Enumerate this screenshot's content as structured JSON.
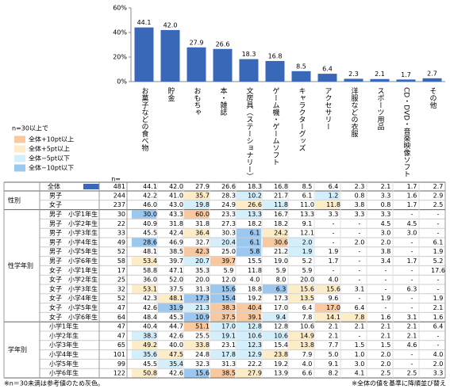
{
  "chart_data": {
    "type": "bar",
    "categories": [
      "お菓子などの食べ物",
      "貯金",
      "おもちゃ",
      "本・雑誌",
      "文房具（ステーショナリー）",
      "ゲーム機・ゲームソフト",
      "キャラクターグッズ",
      "アクセサリー",
      "洋服などの衣服",
      "スポーツ用品",
      "CD・DVD・音楽映像ソフト",
      "その他"
    ],
    "values": [
      44.1,
      42.0,
      27.9,
      26.6,
      18.3,
      16.8,
      8.5,
      6.4,
      2.3,
      2.1,
      1.7,
      2.7
    ],
    "value_labels": [
      "44.1",
      "42.0",
      "27.9",
      "26.6",
      "18.3",
      "16.8",
      "8.5",
      "6.4",
      "2.3",
      "2.1",
      "1.7",
      "2.7"
    ],
    "color": "#3a68b8",
    "ylim": [
      0,
      60
    ],
    "yticks": [
      {
        "value": 0,
        "label": "0%"
      },
      {
        "value": 20,
        "label": "20%"
      },
      {
        "value": 40,
        "label": "40%"
      },
      {
        "value": 60,
        "label": "60%"
      }
    ]
  },
  "legend": {
    "title": "n=30以上で",
    "items": [
      {
        "label": "全体+10pt以上",
        "color": "#f8c9a0"
      },
      {
        "label": "全体+5pt以上",
        "color": "#fdecc8"
      },
      {
        "label": "全体−5pt以下",
        "color": "#d3effb"
      },
      {
        "label": "全体−10pt以下",
        "color": "#9cc7ee"
      }
    ]
  },
  "table": {
    "n_header": "n=",
    "total": {
      "label": "全体",
      "n": "481",
      "cells": [
        "44.1",
        "42.0",
        "27.9",
        "26.6",
        "18.3",
        "16.8",
        "8.5",
        "6.4",
        "2.3",
        "2.1",
        "1.7",
        "2.7"
      ]
    },
    "groups": [
      {
        "label": "性別",
        "rows": [
          {
            "label": "男子",
            "n": "244",
            "cells": [
              "42.2",
              "41.0",
              "35.7",
              "28.3",
              "10.2",
              "21.7",
              "6.1",
              "1.2",
              "0.8",
              "3.3",
              "1.6",
              "2.9"
            ]
          },
          {
            "label": "女子",
            "n": "237",
            "cells": [
              "46.0",
              "43.0",
              "19.8",
              "24.9",
              "26.6",
              "11.8",
              "11.0",
              "11.8",
              "3.8",
              "0.8",
              "1.7",
              "2.5"
            ]
          }
        ]
      },
      {
        "label": "性学年別",
        "rows": [
          {
            "label": "男子　小学1年生",
            "n": "30",
            "cells": [
              "30.0",
              "43.3",
              "60.0",
              "23.3",
              "13.3",
              "16.7",
              "13.3",
              "3.3",
              "3.3",
              "3.3",
              "-",
              "-"
            ]
          },
          {
            "label": "男子　小学2年生",
            "n": "22",
            "cells": [
              "40.9",
              "31.8",
              "31.8",
              "27.3",
              "18.2",
              "18.2",
              "9.1",
              "-",
              "-",
              "4.5",
              "4.5",
              "-"
            ]
          },
          {
            "label": "男子　小学3年生",
            "n": "33",
            "cells": [
              "45.5",
              "42.4",
              "36.4",
              "30.3",
              "6.1",
              "24.2",
              "12.1",
              "-",
              "-",
              "3.0",
              "3.0",
              "-"
            ]
          },
          {
            "label": "男子　小学4年生",
            "n": "49",
            "cells": [
              "28.6",
              "46.9",
              "32.7",
              "20.4",
              "6.1",
              "30.6",
              "2.0",
              "-",
              "2.0",
              "2.0",
              "-",
              "6.1"
            ]
          },
          {
            "label": "男子　小学5年生",
            "n": "52",
            "cells": [
              "48.1",
              "38.5",
              "42.3",
              "25.0",
              "5.8",
              "21.2",
              "1.9",
              "1.9",
              "-",
              "3.8",
              "-",
              "1.9"
            ]
          },
          {
            "label": "男子　小学6年生",
            "n": "58",
            "cells": [
              "53.4",
              "39.7",
              "20.7",
              "39.7",
              "15.5",
              "19.0",
              "5.2",
              "1.7",
              "-",
              "3.4",
              "1.7",
              "5.2"
            ]
          },
          {
            "label": "女子　小学1年生",
            "n": "17",
            "cells": [
              "58.8",
              "47.1",
              "35.3",
              "5.9",
              "11.8",
              "5.9",
              "5.9",
              "-",
              "-",
              "-",
              "-",
              "17.6"
            ]
          },
          {
            "label": "女子　小学2年生",
            "n": "25",
            "cells": [
              "36.0",
              "52.0",
              "20.0",
              "12.0",
              "4.0",
              "8.0",
              "20.0",
              "4.0",
              "-",
              "-",
              "-",
              "-"
            ]
          },
          {
            "label": "女子　小学3年生",
            "n": "32",
            "cells": [
              "53.1",
              "37.5",
              "31.3",
              "15.6",
              "18.8",
              "6.3",
              "15.6",
              "15.6",
              "3.1",
              "-",
              "6.3",
              "-"
            ]
          },
          {
            "label": "女子　小学4年生",
            "n": "52",
            "cells": [
              "42.3",
              "48.1",
              "17.3",
              "15.4",
              "19.2",
              "17.3",
              "13.5",
              "9.6",
              "-",
              "1.9",
              "-",
              "1.9"
            ]
          },
          {
            "label": "女子　小学5年生",
            "n": "47",
            "cells": [
              "42.6",
              "31.9",
              "21.3",
              "38.3",
              "40.4",
              "17.0",
              "6.4",
              "17.0",
              "6.4",
              "-",
              "-",
              "2.1"
            ]
          },
          {
            "label": "女子　小学6年生",
            "n": "64",
            "cells": [
              "48.4",
              "45.3",
              "10.9",
              "37.5",
              "39.1",
              "9.4",
              "7.8",
              "14.1",
              "7.8",
              "1.6",
              "3.1",
              "1.6"
            ]
          }
        ]
      },
      {
        "label": "学年別",
        "rows": [
          {
            "label": "小学1年生",
            "n": "47",
            "cells": [
              "40.4",
              "44.7",
              "51.1",
              "17.0",
              "12.8",
              "12.8",
              "10.6",
              "2.1",
              "2.1",
              "2.1",
              "2.1",
              "6.4"
            ]
          },
          {
            "label": "小学2年生",
            "n": "47",
            "cells": [
              "38.3",
              "42.6",
              "25.5",
              "19.1",
              "10.6",
              "10.6",
              "14.9",
              "2.1",
              "-",
              "2.1",
              "2.1",
              "-"
            ]
          },
          {
            "label": "小学3年生",
            "n": "65",
            "cells": [
              "49.2",
              "40.0",
              "33.8",
              "23.1",
              "12.3",
              "15.4",
              "13.8",
              "7.7",
              "1.5",
              "1.5",
              "4.6",
              "-"
            ]
          },
          {
            "label": "小学4年生",
            "n": "101",
            "cells": [
              "35.6",
              "47.5",
              "24.8",
              "17.8",
              "12.9",
              "23.8",
              "7.9",
              "5.0",
              "1.0",
              "2.0",
              "-",
              "4.0"
            ]
          },
          {
            "label": "小学5年生",
            "n": "99",
            "cells": [
              "45.5",
              "35.4",
              "32.3",
              "31.3",
              "22.2",
              "19.2",
              "4.0",
              "9.1",
              "3.0",
              "2.0",
              "-",
              "2.0"
            ]
          },
          {
            "label": "小学6年生",
            "n": "122",
            "cells": [
              "50.8",
              "42.6",
              "15.6",
              "38.5",
              "27.9",
              "13.9",
              "6.6",
              "8.2",
              "4.1",
              "2.5",
              "2.5",
              "3.3"
            ]
          }
        ]
      }
    ]
  },
  "footer": {
    "left": "※n＝30未満は参考値のため灰色。",
    "right": "※全体の値を基準に降順並び替え"
  }
}
